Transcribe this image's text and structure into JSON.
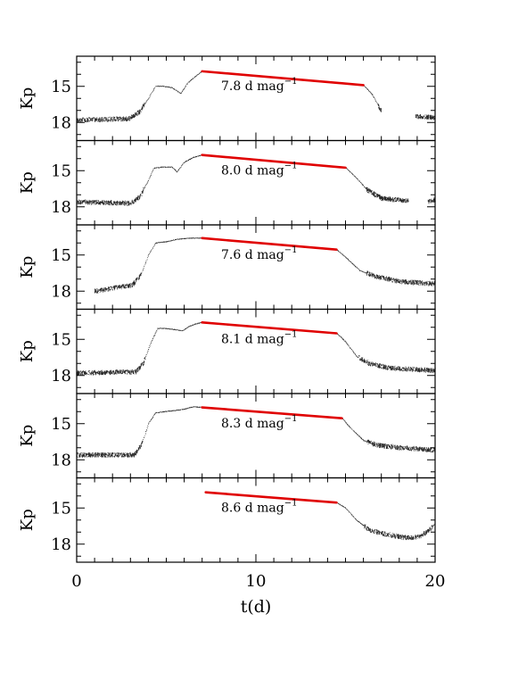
{
  "chart_data": {
    "type": "line",
    "layout": "stacked panels, shared x-axis",
    "xlabel": "t(d)",
    "xlim": [
      0,
      20
    ],
    "x_ticks": [
      0,
      10,
      20
    ],
    "x_tick_labels": [
      "0",
      "10",
      "20"
    ],
    "ylabel": "Kp",
    "y_inverted": true,
    "ylim": [
      12.5,
      19.5
    ],
    "y_ticks": [
      15,
      18
    ],
    "y_tick_labels": [
      "15",
      "18"
    ],
    "grid": false,
    "legend": "none",
    "colors": {
      "data": "#000000",
      "fit": "#e00000"
    },
    "panels": [
      {
        "annotation_value": "7.8 d mag",
        "annotation_exp": "−1",
        "fit": {
          "x": [
            7.0,
            16.0
          ],
          "y": [
            13.75,
            14.9
          ]
        },
        "curve": {
          "x": [
            0.0,
            2.9,
            3.5,
            4.0,
            4.4,
            4.8,
            5.3,
            5.8,
            6.2,
            6.6,
            7.0,
            16.0,
            16.5,
            17.0,
            18.9,
            20.0
          ],
          "y": [
            17.8,
            17.7,
            17.1,
            16.0,
            15.0,
            15.0,
            15.1,
            15.6,
            14.7,
            14.2,
            13.75,
            14.9,
            15.7,
            17.1,
            17.5,
            17.6
          ]
        },
        "gaps": [
          [
            17.0,
            18.9
          ]
        ]
      },
      {
        "annotation_value": "8.0 d mag",
        "annotation_exp": "−1",
        "fit": {
          "x": [
            7.0,
            15.0
          ],
          "y": [
            13.7,
            14.75
          ]
        },
        "curve": {
          "x": [
            0.0,
            3.0,
            3.5,
            4.0,
            4.3,
            4.8,
            5.3,
            5.6,
            6.0,
            6.5,
            7.0,
            15.0,
            15.6,
            16.2,
            17.0,
            18.5,
            19.6,
            20.0
          ],
          "y": [
            17.6,
            17.7,
            17.2,
            15.8,
            14.8,
            14.7,
            14.7,
            15.1,
            14.3,
            13.9,
            13.7,
            14.75,
            15.6,
            16.6,
            17.3,
            17.5,
            17.6,
            17.4
          ]
        },
        "gaps": [
          [
            18.5,
            19.6
          ]
        ]
      },
      {
        "annotation_value": "7.6 d mag",
        "annotation_exp": "−1",
        "fit": {
          "x": [
            7.0,
            14.5
          ],
          "y": [
            13.6,
            14.55
          ]
        },
        "curve": {
          "x": [
            1.0,
            3.1,
            3.6,
            4.0,
            4.4,
            5.0,
            5.6,
            6.3,
            7.0,
            14.5,
            15.0,
            15.8,
            16.7,
            18.0,
            20.0
          ],
          "y": [
            18.0,
            17.5,
            16.6,
            15.0,
            14.0,
            13.9,
            13.7,
            13.6,
            13.6,
            14.55,
            15.2,
            16.3,
            16.8,
            17.2,
            17.4
          ]
        },
        "gaps": []
      },
      {
        "annotation_value": "8.1 d mag",
        "annotation_exp": "−1",
        "fit": {
          "x": [
            7.0,
            14.5
          ],
          "y": [
            13.6,
            14.5
          ]
        },
        "curve": {
          "x": [
            0.0,
            3.3,
            3.7,
            4.1,
            4.5,
            5.0,
            5.5,
            5.9,
            6.3,
            6.7,
            7.0,
            14.5,
            15.0,
            15.6,
            16.3,
            17.5,
            20.0
          ],
          "y": [
            17.8,
            17.7,
            17.0,
            15.4,
            14.1,
            14.1,
            14.2,
            14.3,
            13.9,
            13.7,
            13.6,
            14.5,
            15.2,
            16.4,
            17.0,
            17.4,
            17.6
          ]
        },
        "gaps": []
      },
      {
        "annotation_value": "8.3 d mag",
        "annotation_exp": "−1",
        "fit": {
          "x": [
            7.0,
            14.8
          ],
          "y": [
            13.65,
            14.55
          ]
        },
        "curve": {
          "x": [
            0.0,
            3.2,
            3.6,
            4.0,
            4.4,
            4.9,
            5.5,
            6.0,
            6.5,
            7.0,
            14.8,
            15.3,
            16.0,
            16.8,
            18.0,
            20.0
          ],
          "y": [
            17.6,
            17.6,
            16.8,
            15.0,
            14.1,
            14.0,
            13.9,
            13.8,
            13.6,
            13.65,
            14.55,
            15.4,
            16.4,
            16.8,
            17.0,
            17.2
          ]
        },
        "gaps": []
      },
      {
        "annotation_value": "8.6 d mag",
        "annotation_exp": "−1",
        "fit": {
          "x": [
            7.2,
            14.5
          ],
          "y": [
            13.7,
            14.55
          ]
        },
        "curve": {
          "x": [
            7.2,
            14.5,
            15.0,
            15.6,
            16.3,
            17.0,
            18.0,
            18.6,
            19.2,
            19.6,
            20.0
          ],
          "y": [
            13.7,
            14.55,
            15.0,
            16.0,
            16.8,
            17.1,
            17.4,
            17.5,
            17.3,
            16.9,
            16.3
          ]
        },
        "gaps": []
      }
    ]
  }
}
